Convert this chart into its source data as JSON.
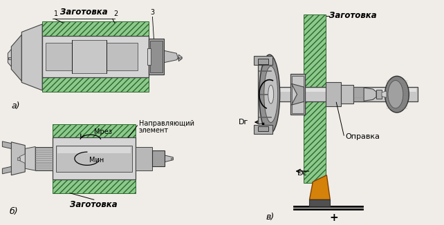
{
  "background_color": "#f0ede8",
  "label_a": "а)",
  "label_b": "б)",
  "label_v": "в)",
  "text_zagotovka": "Заготовка",
  "text_napravl_line1": "Направляющий",
  "text_napravl_line2": "элемент",
  "text_opravka": "Оправка",
  "text_Mrez": "Mрез",
  "text_Min": "Mин",
  "text_Dr": "Dг",
  "text_Ds": "Dс",
  "text_plus": "+",
  "num1": "1",
  "num2": "2",
  "num3": "3",
  "green_fc": "#8dc98d",
  "green_ec": "#2a6a2a",
  "gray1": "#d0d0d0",
  "gray2": "#b0b0b0",
  "gray3": "#909090",
  "gray4": "#707070",
  "gray5": "#c8c8c8",
  "dark": "#303030",
  "orange": "#d4820a"
}
